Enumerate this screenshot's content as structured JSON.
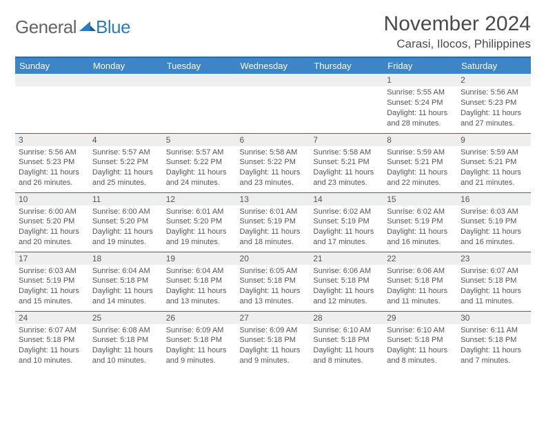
{
  "logo": {
    "text1": "General",
    "text2": "Blue"
  },
  "title": "November 2024",
  "location": "Carasi, Ilocos, Philippines",
  "colors": {
    "header_bg": "#3d85c6",
    "header_border": "#2c6aa0",
    "daynum_bg": "#eeeeee",
    "text": "#555555",
    "logo_gray": "#646464",
    "logo_blue": "#2c7bc0",
    "row_border": "#2c6aa0"
  },
  "weekdays": [
    "Sunday",
    "Monday",
    "Tuesday",
    "Wednesday",
    "Thursday",
    "Friday",
    "Saturday"
  ],
  "weeks": [
    [
      {
        "n": "",
        "lines": []
      },
      {
        "n": "",
        "lines": []
      },
      {
        "n": "",
        "lines": []
      },
      {
        "n": "",
        "lines": []
      },
      {
        "n": "",
        "lines": []
      },
      {
        "n": "1",
        "lines": [
          "Sunrise: 5:55 AM",
          "Sunset: 5:24 PM",
          "Daylight: 11 hours and 28 minutes."
        ]
      },
      {
        "n": "2",
        "lines": [
          "Sunrise: 5:56 AM",
          "Sunset: 5:23 PM",
          "Daylight: 11 hours and 27 minutes."
        ]
      }
    ],
    [
      {
        "n": "3",
        "lines": [
          "Sunrise: 5:56 AM",
          "Sunset: 5:23 PM",
          "Daylight: 11 hours and 26 minutes."
        ]
      },
      {
        "n": "4",
        "lines": [
          "Sunrise: 5:57 AM",
          "Sunset: 5:22 PM",
          "Daylight: 11 hours and 25 minutes."
        ]
      },
      {
        "n": "5",
        "lines": [
          "Sunrise: 5:57 AM",
          "Sunset: 5:22 PM",
          "Daylight: 11 hours and 24 minutes."
        ]
      },
      {
        "n": "6",
        "lines": [
          "Sunrise: 5:58 AM",
          "Sunset: 5:22 PM",
          "Daylight: 11 hours and 23 minutes."
        ]
      },
      {
        "n": "7",
        "lines": [
          "Sunrise: 5:58 AM",
          "Sunset: 5:21 PM",
          "Daylight: 11 hours and 23 minutes."
        ]
      },
      {
        "n": "8",
        "lines": [
          "Sunrise: 5:59 AM",
          "Sunset: 5:21 PM",
          "Daylight: 11 hours and 22 minutes."
        ]
      },
      {
        "n": "9",
        "lines": [
          "Sunrise: 5:59 AM",
          "Sunset: 5:21 PM",
          "Daylight: 11 hours and 21 minutes."
        ]
      }
    ],
    [
      {
        "n": "10",
        "lines": [
          "Sunrise: 6:00 AM",
          "Sunset: 5:20 PM",
          "Daylight: 11 hours and 20 minutes."
        ]
      },
      {
        "n": "11",
        "lines": [
          "Sunrise: 6:00 AM",
          "Sunset: 5:20 PM",
          "Daylight: 11 hours and 19 minutes."
        ]
      },
      {
        "n": "12",
        "lines": [
          "Sunrise: 6:01 AM",
          "Sunset: 5:20 PM",
          "Daylight: 11 hours and 19 minutes."
        ]
      },
      {
        "n": "13",
        "lines": [
          "Sunrise: 6:01 AM",
          "Sunset: 5:19 PM",
          "Daylight: 11 hours and 18 minutes."
        ]
      },
      {
        "n": "14",
        "lines": [
          "Sunrise: 6:02 AM",
          "Sunset: 5:19 PM",
          "Daylight: 11 hours and 17 minutes."
        ]
      },
      {
        "n": "15",
        "lines": [
          "Sunrise: 6:02 AM",
          "Sunset: 5:19 PM",
          "Daylight: 11 hours and 16 minutes."
        ]
      },
      {
        "n": "16",
        "lines": [
          "Sunrise: 6:03 AM",
          "Sunset: 5:19 PM",
          "Daylight: 11 hours and 16 minutes."
        ]
      }
    ],
    [
      {
        "n": "17",
        "lines": [
          "Sunrise: 6:03 AM",
          "Sunset: 5:19 PM",
          "Daylight: 11 hours and 15 minutes."
        ]
      },
      {
        "n": "18",
        "lines": [
          "Sunrise: 6:04 AM",
          "Sunset: 5:18 PM",
          "Daylight: 11 hours and 14 minutes."
        ]
      },
      {
        "n": "19",
        "lines": [
          "Sunrise: 6:04 AM",
          "Sunset: 5:18 PM",
          "Daylight: 11 hours and 13 minutes."
        ]
      },
      {
        "n": "20",
        "lines": [
          "Sunrise: 6:05 AM",
          "Sunset: 5:18 PM",
          "Daylight: 11 hours and 13 minutes."
        ]
      },
      {
        "n": "21",
        "lines": [
          "Sunrise: 6:06 AM",
          "Sunset: 5:18 PM",
          "Daylight: 11 hours and 12 minutes."
        ]
      },
      {
        "n": "22",
        "lines": [
          "Sunrise: 6:06 AM",
          "Sunset: 5:18 PM",
          "Daylight: 11 hours and 11 minutes."
        ]
      },
      {
        "n": "23",
        "lines": [
          "Sunrise: 6:07 AM",
          "Sunset: 5:18 PM",
          "Daylight: 11 hours and 11 minutes."
        ]
      }
    ],
    [
      {
        "n": "24",
        "lines": [
          "Sunrise: 6:07 AM",
          "Sunset: 5:18 PM",
          "Daylight: 11 hours and 10 minutes."
        ]
      },
      {
        "n": "25",
        "lines": [
          "Sunrise: 6:08 AM",
          "Sunset: 5:18 PM",
          "Daylight: 11 hours and 10 minutes."
        ]
      },
      {
        "n": "26",
        "lines": [
          "Sunrise: 6:09 AM",
          "Sunset: 5:18 PM",
          "Daylight: 11 hours and 9 minutes."
        ]
      },
      {
        "n": "27",
        "lines": [
          "Sunrise: 6:09 AM",
          "Sunset: 5:18 PM",
          "Daylight: 11 hours and 9 minutes."
        ]
      },
      {
        "n": "28",
        "lines": [
          "Sunrise: 6:10 AM",
          "Sunset: 5:18 PM",
          "Daylight: 11 hours and 8 minutes."
        ]
      },
      {
        "n": "29",
        "lines": [
          "Sunrise: 6:10 AM",
          "Sunset: 5:18 PM",
          "Daylight: 11 hours and 8 minutes."
        ]
      },
      {
        "n": "30",
        "lines": [
          "Sunrise: 6:11 AM",
          "Sunset: 5:18 PM",
          "Daylight: 11 hours and 7 minutes."
        ]
      }
    ]
  ]
}
